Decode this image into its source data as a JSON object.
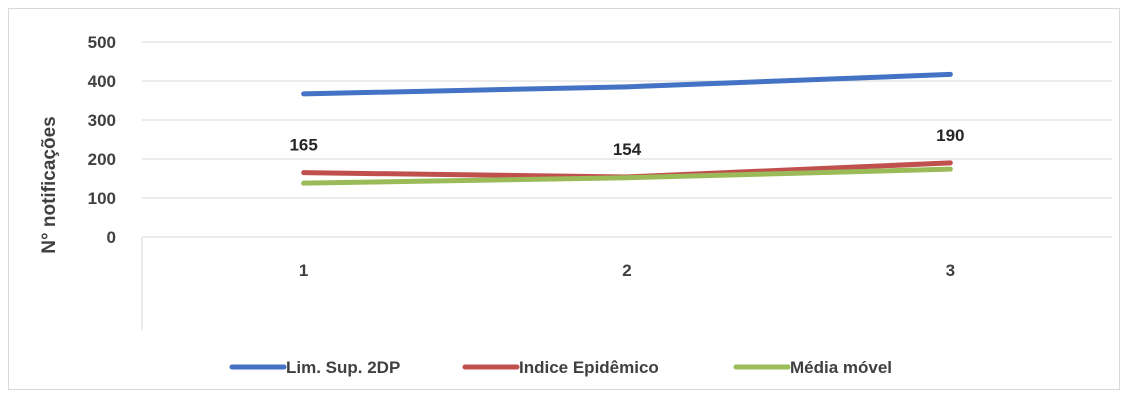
{
  "chart_data": {
    "type": "line",
    "categories": [
      "1",
      "2",
      "3"
    ],
    "series": [
      {
        "name": "Lim. Sup. 2DP",
        "values": [
          367,
          385,
          417
        ],
        "color": "#4472c4"
      },
      {
        "name": "Indice Epidêmico",
        "values": [
          165,
          154,
          190
        ],
        "color": "#c0504d",
        "data_labels": [
          "165",
          "154",
          "190"
        ]
      },
      {
        "name": "Média móvel",
        "values": [
          138,
          152,
          174
        ],
        "color": "#9bbb59"
      }
    ],
    "yticks": [
      "0",
      "100",
      "200",
      "300",
      "400",
      "500"
    ],
    "ylim": [
      0,
      500
    ],
    "ylabel": "N° notificações",
    "grid": true,
    "legend": "bottom"
  }
}
